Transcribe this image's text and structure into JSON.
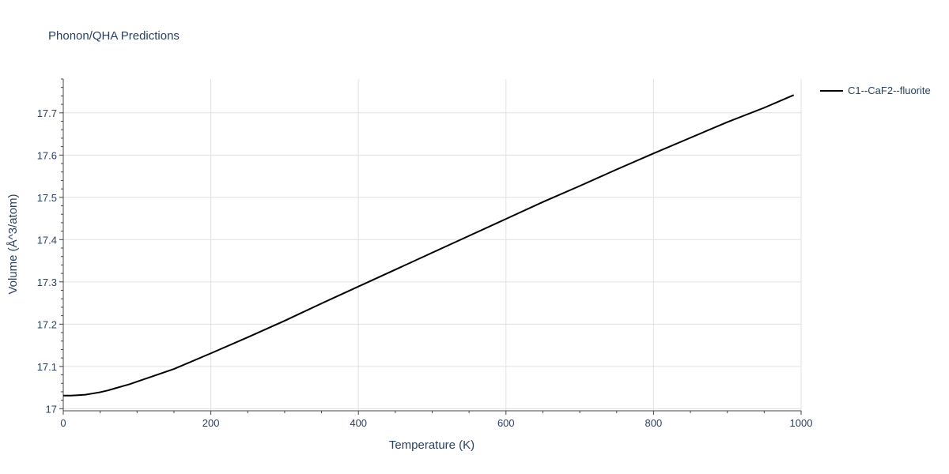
{
  "chart_data": {
    "type": "line",
    "title": "Phonon/QHA Predictions",
    "xlabel": "Temperature (K)",
    "ylabel": "Volume (Å^3/atom)",
    "xlim": [
      0,
      1000
    ],
    "ylim": [
      16.995,
      17.78
    ],
    "xticks": [
      0,
      200,
      400,
      600,
      800,
      1000
    ],
    "xtick_labels": [
      "0",
      "200",
      "400",
      "600",
      "800",
      "1000"
    ],
    "yticks": [
      17.0,
      17.1,
      17.2,
      17.3,
      17.4,
      17.5,
      17.6,
      17.7
    ],
    "ytick_labels": [
      "17",
      "17.1",
      "17.2",
      "17.3",
      "17.4",
      "17.5",
      "17.6",
      "17.7"
    ],
    "grid": true,
    "legend_position": "top-right",
    "series": [
      {
        "name": "C1--CaF2--fluorite",
        "color": "#000000",
        "x": [
          0,
          10,
          20,
          30,
          40,
          50,
          60,
          70,
          80,
          90,
          100,
          120,
          150,
          200,
          250,
          300,
          350,
          400,
          450,
          500,
          550,
          600,
          650,
          700,
          750,
          800,
          850,
          900,
          950,
          990
        ],
        "y": [
          17.031,
          17.031,
          17.032,
          17.033,
          17.036,
          17.039,
          17.043,
          17.048,
          17.053,
          17.058,
          17.064,
          17.076,
          17.094,
          17.131,
          17.169,
          17.208,
          17.249,
          17.289,
          17.329,
          17.369,
          17.409,
          17.449,
          17.489,
          17.527,
          17.566,
          17.604,
          17.641,
          17.678,
          17.712,
          17.742
        ]
      }
    ]
  }
}
